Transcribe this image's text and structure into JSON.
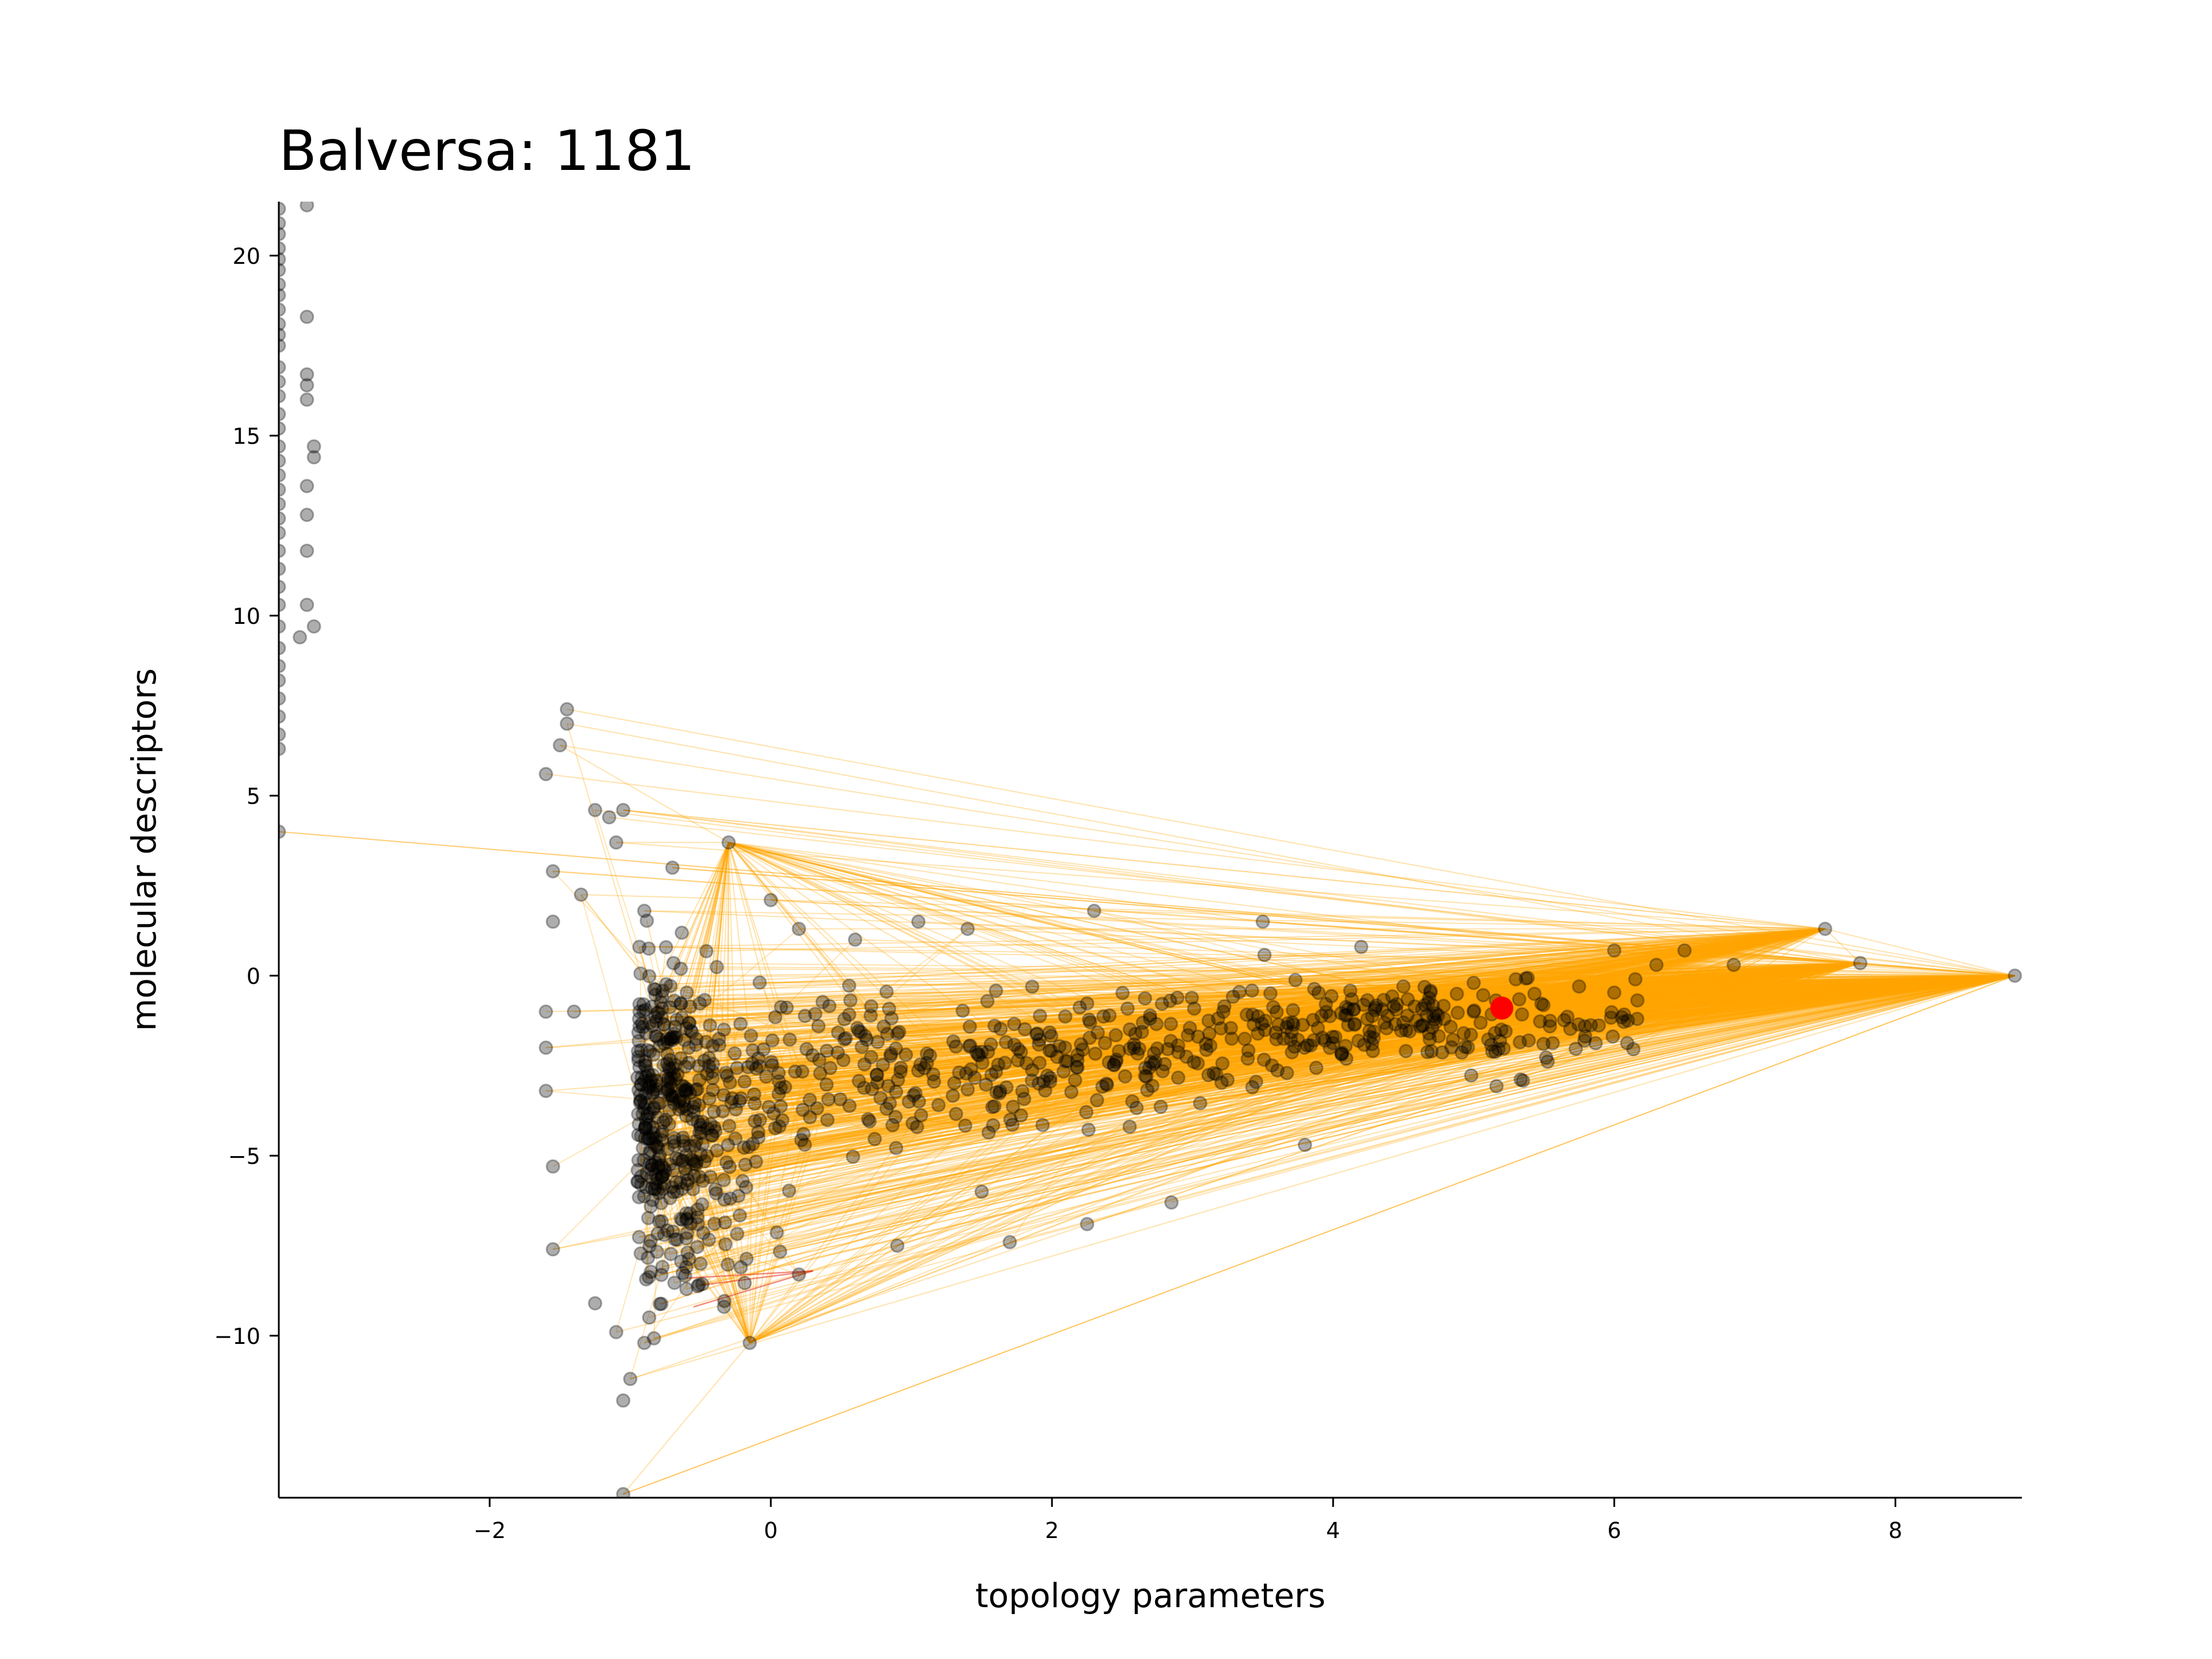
{
  "chart_data": {
    "type": "scatter",
    "title": "Balversa: 1181",
    "xlabel": "topology parameters",
    "ylabel": "molecular descriptors",
    "xlim": [
      -3.5,
      8.9
    ],
    "ylim": [
      -14.5,
      21.5
    ],
    "xticks": [
      -2,
      0,
      2,
      4,
      6,
      8
    ],
    "yticks": [
      -10,
      -5,
      0,
      5,
      10,
      15,
      20
    ],
    "xtick_labels": [
      "−2",
      "0",
      "2",
      "4",
      "6",
      "8"
    ],
    "ytick_labels": [
      "−10",
      "−5",
      "0",
      "5",
      "10",
      "15",
      "20"
    ],
    "grid": false,
    "colors": {
      "points": "#000000",
      "edges": "#ffa500",
      "highlight": "#ff0000",
      "edge_accent": "#e8402a"
    },
    "highlight_point": {
      "x": 5.2,
      "y": -0.9
    },
    "hub_points": [
      {
        "x": 8.85,
        "y": 0.0
      },
      {
        "x": 7.75,
        "y": 0.35
      },
      {
        "x": 7.5,
        "y": 1.3
      },
      {
        "x": -0.3,
        "y": 3.7
      },
      {
        "x": -0.15,
        "y": -10.2
      }
    ],
    "sparse_edges": [
      {
        "from": [
          -1.05,
          4.6
        ],
        "to": [
          7.5,
          1.3
        ]
      },
      {
        "from": [
          -1.05,
          -14.4
        ],
        "to": [
          8.85,
          0.0
        ]
      },
      {
        "from": [
          -0.7,
          3.0
        ],
        "to": [
          8.85,
          0.0
        ]
      },
      {
        "from": [
          -1.35,
          2.25
        ],
        "to": [
          -0.8,
          -0.5
        ]
      }
    ],
    "series": [
      {
        "name": "",
        "points": [
          [
            -3.5,
            21.3
          ],
          [
            -3.5,
            20.9
          ],
          [
            -3.5,
            20.6
          ],
          [
            -3.5,
            20.2
          ],
          [
            -3.5,
            19.9
          ],
          [
            -3.5,
            19.6
          ],
          [
            -3.5,
            19.2
          ],
          [
            -3.5,
            18.9
          ],
          [
            -3.5,
            18.5
          ],
          [
            -3.5,
            18.1
          ],
          [
            -3.5,
            17.8
          ],
          [
            -3.5,
            17.5
          ],
          [
            -3.5,
            16.9
          ],
          [
            -3.5,
            16.5
          ],
          [
            -3.5,
            16.1
          ],
          [
            -3.5,
            15.6
          ],
          [
            -3.5,
            15.2
          ],
          [
            -3.5,
            14.7
          ],
          [
            -3.5,
            14.3
          ],
          [
            -3.5,
            13.9
          ],
          [
            -3.5,
            13.5
          ],
          [
            -3.5,
            13.1
          ],
          [
            -3.5,
            12.7
          ],
          [
            -3.5,
            12.3
          ],
          [
            -3.5,
            11.8
          ],
          [
            -3.5,
            11.3
          ],
          [
            -3.5,
            10.8
          ],
          [
            -3.5,
            10.3
          ],
          [
            -3.5,
            9.7
          ],
          [
            -3.5,
            9.1
          ],
          [
            -3.5,
            8.6
          ],
          [
            -3.5,
            8.2
          ],
          [
            -3.5,
            7.7
          ],
          [
            -3.5,
            7.2
          ],
          [
            -3.5,
            6.7
          ],
          [
            -3.5,
            6.3
          ],
          [
            -3.5,
            4.0
          ],
          [
            -3.3,
            21.4
          ],
          [
            -3.3,
            18.3
          ],
          [
            -3.3,
            16.7
          ],
          [
            -3.3,
            16.4
          ],
          [
            -3.3,
            16.0
          ],
          [
            -3.25,
            14.7
          ],
          [
            -3.25,
            14.4
          ],
          [
            -3.3,
            13.6
          ],
          [
            -3.3,
            12.8
          ],
          [
            -3.3,
            11.8
          ],
          [
            -3.3,
            10.3
          ],
          [
            -3.25,
            9.7
          ],
          [
            -3.35,
            9.4
          ],
          [
            -1.45,
            7.4
          ],
          [
            -1.45,
            7.0
          ],
          [
            -1.5,
            6.4
          ],
          [
            -1.6,
            5.6
          ],
          [
            -1.55,
            2.9
          ],
          [
            -1.55,
            1.5
          ],
          [
            -1.6,
            -1.0
          ],
          [
            -1.6,
            -2.0
          ],
          [
            -1.6,
            -3.2
          ],
          [
            -1.55,
            -5.3
          ],
          [
            -1.55,
            -7.6
          ],
          [
            -1.35,
            2.25
          ],
          [
            -1.4,
            -1.0
          ],
          [
            -1.25,
            4.6
          ],
          [
            -1.15,
            4.4
          ],
          [
            -1.1,
            3.7
          ],
          [
            -1.05,
            4.6
          ],
          [
            -1.05,
            -11.8
          ],
          [
            -1.05,
            -14.4
          ],
          [
            -0.9,
            1.8
          ],
          [
            -0.7,
            3.0
          ],
          [
            -0.3,
            3.7
          ],
          [
            0.0,
            2.1
          ],
          [
            0.2,
            1.3
          ],
          [
            0.6,
            1.0
          ],
          [
            1.05,
            1.5
          ],
          [
            1.4,
            1.3
          ],
          [
            2.3,
            1.8
          ],
          [
            3.5,
            1.5
          ],
          [
            4.2,
            0.8
          ],
          [
            4.5,
            -0.3
          ],
          [
            4.5,
            -1.3
          ],
          [
            4.7,
            -2.1
          ],
          [
            5.0,
            -0.2
          ],
          [
            5.3,
            -0.1
          ],
          [
            5.0,
            -1.0
          ],
          [
            5.75,
            -0.3
          ],
          [
            6.0,
            0.7
          ],
          [
            6.15,
            -0.1
          ],
          [
            6.3,
            0.3
          ],
          [
            6.5,
            0.7
          ],
          [
            6.85,
            0.3
          ],
          [
            7.5,
            1.3
          ],
          [
            7.75,
            0.35
          ],
          [
            8.85,
            0.0
          ],
          [
            -0.15,
            -10.2
          ],
          [
            0.2,
            -8.3
          ],
          [
            0.9,
            -7.5
          ],
          [
            1.7,
            -7.4
          ],
          [
            2.25,
            -6.9
          ],
          [
            2.85,
            -6.3
          ],
          [
            3.8,
            -4.7
          ],
          [
            1.5,
            -6.0
          ],
          [
            -0.5,
            -8.0
          ],
          [
            -0.6,
            -8.7
          ],
          [
            -0.9,
            -10.2
          ],
          [
            -1.1,
            -9.9
          ],
          [
            -1.25,
            -9.1
          ],
          [
            -1.0,
            -11.2
          ]
        ]
      }
    ]
  }
}
